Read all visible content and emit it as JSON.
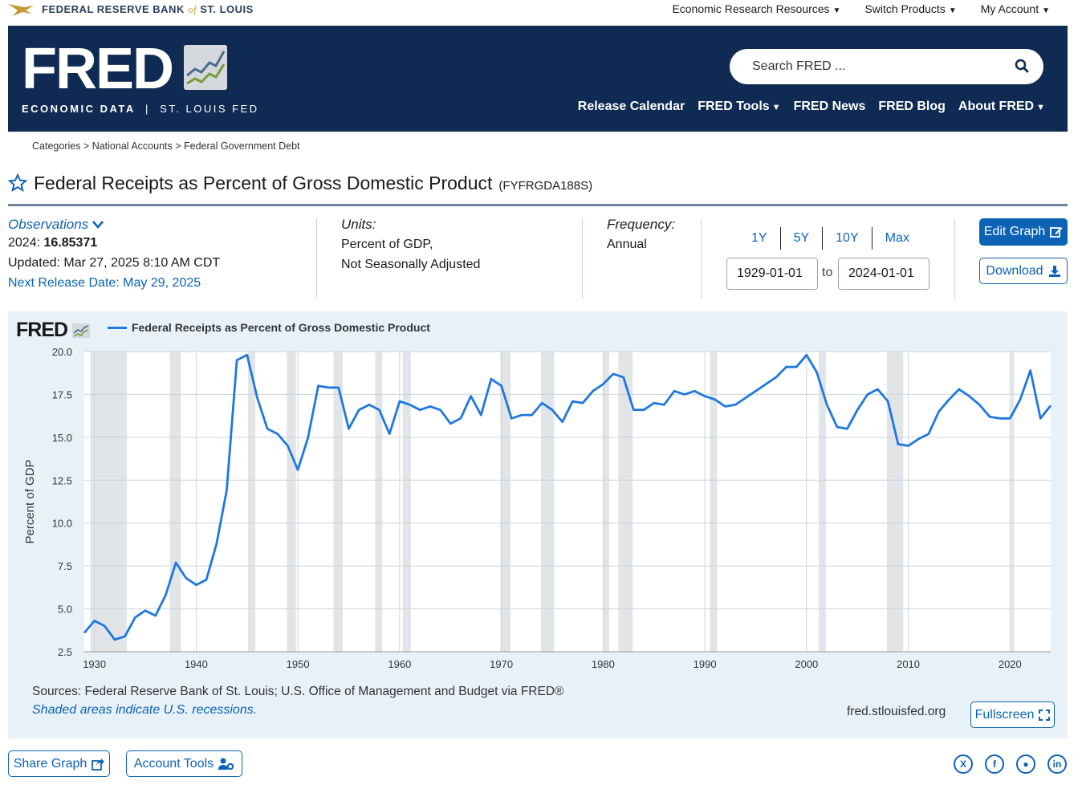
{
  "topbar": {
    "frb_prefix": "FEDERAL RESERVE BANK",
    "frb_of": "of",
    "frb_suffix": "ST. LOUIS",
    "nav": [
      "Economic Research Resources",
      "Switch Products",
      "My Account"
    ]
  },
  "header": {
    "wordmark": "FRED",
    "sub_left": "ECONOMIC DATA",
    "sub_sep": "|",
    "sub_right": "ST. LOUIS FED",
    "search_placeholder": "Search FRED ...",
    "nav": [
      "Release Calendar",
      "FRED Tools",
      "FRED News",
      "FRED Blog",
      "About FRED"
    ]
  },
  "breadcrumb": {
    "text": "Categories > National Accounts > Federal Government Debt"
  },
  "series": {
    "title": "Federal Receipts as Percent of Gross Domestic Product",
    "id": "(FYFRGDA188S)"
  },
  "observations": {
    "label": "Observations",
    "year": "2024:",
    "value": "16.85371",
    "updated": "Updated: Mar 27, 2025 8:10 AM CDT",
    "next_release": "Next Release Date: May 29, 2025"
  },
  "units": {
    "label": "Units:",
    "line1": "Percent of GDP,",
    "line2": "Not Seasonally Adjusted"
  },
  "frequency": {
    "label": "Frequency:",
    "value": "Annual"
  },
  "range": {
    "buttons": [
      "1Y",
      "5Y",
      "10Y",
      "Max"
    ],
    "start": "1929-01-01",
    "to": "to",
    "end": "2024-01-01"
  },
  "actions": {
    "edit_graph": "Edit Graph",
    "download": "Download",
    "fullscreen": "Fullscreen",
    "share_graph": "Share Graph",
    "account_tools": "Account Tools"
  },
  "graph": {
    "logo": "FRED",
    "sources": "Sources: Federal Reserve Bank of St. Louis; U.S. Office of Management and Budget via FRED®",
    "shaded_note": "Shaded areas indicate U.S. recessions.",
    "url": "fred.stlouisfed.org"
  },
  "chart_data": {
    "type": "line",
    "ylabel": "Percent of GDP",
    "ylim": [
      2.5,
      20.0
    ],
    "yticks": [
      "20.0",
      "17.5",
      "15.0",
      "12.5",
      "10.0",
      "7.5",
      "5.0",
      "2.5"
    ],
    "xlim": [
      1929,
      2024
    ],
    "xticks": [
      "1930",
      "1940",
      "1950",
      "1960",
      "1970",
      "1980",
      "1990",
      "2000",
      "2010",
      "2020"
    ],
    "grid": true,
    "legend_position": "top-left",
    "series": [
      {
        "name": "Federal Receipts as Percent of Gross Domestic Product",
        "color": "#1f77e0",
        "x": [
          1929,
          1930,
          1931,
          1932,
          1933,
          1934,
          1935,
          1936,
          1937,
          1938,
          1939,
          1940,
          1941,
          1942,
          1943,
          1944,
          1945,
          1946,
          1947,
          1948,
          1949,
          1950,
          1951,
          1952,
          1953,
          1954,
          1955,
          1956,
          1957,
          1958,
          1959,
          1960,
          1961,
          1962,
          1963,
          1964,
          1965,
          1966,
          1967,
          1968,
          1969,
          1970,
          1971,
          1972,
          1973,
          1974,
          1975,
          1976,
          1977,
          1978,
          1979,
          1980,
          1981,
          1982,
          1983,
          1984,
          1985,
          1986,
          1987,
          1988,
          1989,
          1990,
          1991,
          1992,
          1993,
          1994,
          1995,
          1996,
          1997,
          1998,
          1999,
          2000,
          2001,
          2002,
          2003,
          2004,
          2005,
          2006,
          2007,
          2008,
          2009,
          2010,
          2011,
          2012,
          2013,
          2014,
          2015,
          2016,
          2017,
          2018,
          2019,
          2020,
          2021,
          2022,
          2023,
          2024
        ],
        "values": [
          3.6,
          4.3,
          4.0,
          3.2,
          3.4,
          4.5,
          4.9,
          4.6,
          5.8,
          7.7,
          6.8,
          6.4,
          6.7,
          8.8,
          11.9,
          19.5,
          19.8,
          17.3,
          15.5,
          15.2,
          14.5,
          13.1,
          15.0,
          18.0,
          17.9,
          17.9,
          15.5,
          16.6,
          16.9,
          16.6,
          15.2,
          17.1,
          16.9,
          16.6,
          16.8,
          16.6,
          15.8,
          16.1,
          17.4,
          16.3,
          18.4,
          18.0,
          16.1,
          16.3,
          16.3,
          17.0,
          16.6,
          15.9,
          17.1,
          17.0,
          17.7,
          18.1,
          18.7,
          18.5,
          16.6,
          16.6,
          17.0,
          16.9,
          17.7,
          17.5,
          17.7,
          17.4,
          17.2,
          16.8,
          16.9,
          17.3,
          17.7,
          18.1,
          18.5,
          19.1,
          19.1,
          19.8,
          18.8,
          16.9,
          15.6,
          15.5,
          16.6,
          17.5,
          17.8,
          17.1,
          14.6,
          14.5,
          14.9,
          15.2,
          16.5,
          17.2,
          17.8,
          17.4,
          16.9,
          16.2,
          16.1,
          16.1,
          17.2,
          18.9,
          16.1,
          16.85
        ]
      }
    ],
    "recessions": [
      [
        1929.6,
        1933.2
      ],
      [
        1937.4,
        1938.5
      ],
      [
        1945.1,
        1945.8
      ],
      [
        1948.9,
        1949.8
      ],
      [
        1953.5,
        1954.4
      ],
      [
        1957.6,
        1958.3
      ],
      [
        1960.3,
        1961.1
      ],
      [
        1969.9,
        1970.9
      ],
      [
        1973.9,
        1975.2
      ],
      [
        1980.0,
        1980.6
      ],
      [
        1981.5,
        1982.9
      ],
      [
        1990.5,
        1991.2
      ],
      [
        2001.2,
        2001.9
      ],
      [
        2007.9,
        2009.5
      ],
      [
        2020.1,
        2020.4
      ]
    ]
  }
}
